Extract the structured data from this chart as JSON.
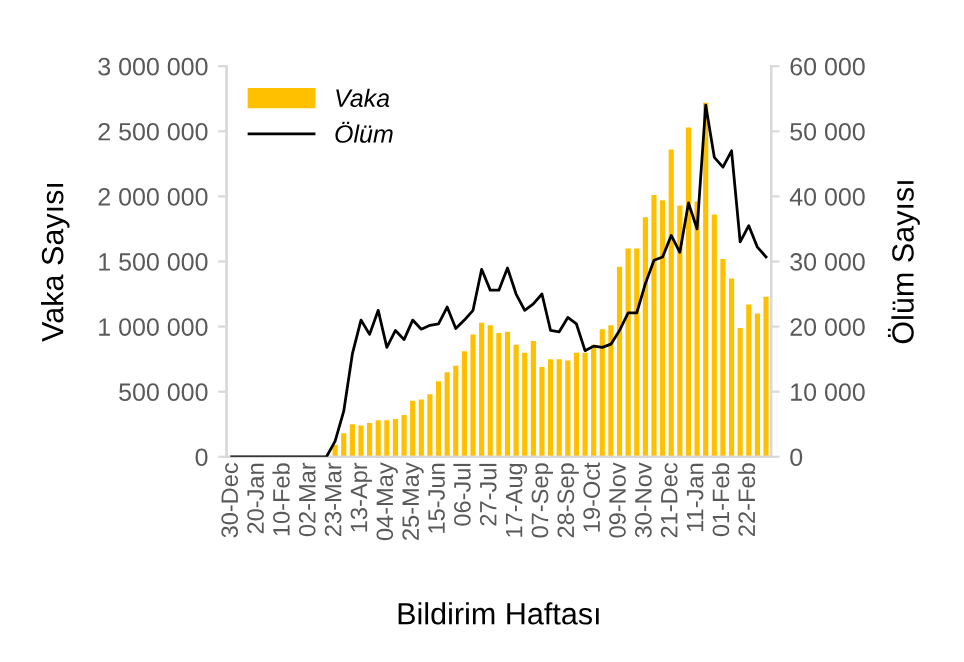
{
  "chart_data": {
    "type": "bar",
    "xlabel": "Bildirim Haftası",
    "ylabel": "Vaka Sayısı",
    "y2label": "Ölüm Sayısı",
    "categories": [
      "30-Dec",
      null,
      null,
      "20-Jan",
      null,
      null,
      "10-Feb",
      null,
      null,
      "02-Mar",
      null,
      null,
      "23-Mar",
      null,
      null,
      "13-Apr",
      null,
      null,
      "04-May",
      null,
      null,
      "25-May",
      null,
      null,
      "15-Jun",
      null,
      null,
      "06-Jul",
      null,
      null,
      "27-Jul",
      null,
      null,
      "17-Aug",
      null,
      null,
      "07-Sep",
      null,
      null,
      "28-Sep",
      null,
      null,
      "19-Oct",
      null,
      null,
      "09-Nov",
      null,
      null,
      "30-Nov",
      null,
      null,
      "21-Dec",
      null,
      null,
      "11-Jan",
      null,
      null,
      "01-Feb",
      null,
      null,
      "22-Feb",
      null,
      null
    ],
    "series": [
      {
        "name": "Vaka",
        "color": "#ffc000",
        "values": [
          0,
          0,
          0,
          0,
          0,
          0,
          0,
          0,
          0,
          0,
          0,
          0,
          90000,
          180000,
          250000,
          240000,
          260000,
          280000,
          280000,
          290000,
          320000,
          430000,
          440000,
          480000,
          580000,
          650000,
          700000,
          810000,
          940000,
          1030000,
          1010000,
          950000,
          960000,
          860000,
          800000,
          890000,
          690000,
          750000,
          750000,
          740000,
          800000,
          800000,
          860000,
          980000,
          1010000,
          1460000,
          1600000,
          1600000,
          1840000,
          2010000,
          1970000,
          2360000,
          1930000,
          2530000,
          1960000,
          2720000,
          1860000,
          1520000,
          1370000,
          990000,
          1170000,
          1100000,
          1230000
        ]
      },
      {
        "name": "Ölüm",
        "type": "line",
        "axis": "y2",
        "color": "#000000",
        "values": [
          0,
          0,
          0,
          0,
          0,
          0,
          0,
          0,
          0,
          0,
          0,
          0,
          2400,
          7000,
          15800,
          21000,
          18800,
          22500,
          16800,
          19400,
          18000,
          21000,
          19600,
          20200,
          20400,
          23000,
          19700,
          21000,
          22500,
          28800,
          25600,
          25600,
          29000,
          25000,
          22500,
          23500,
          25000,
          19400,
          19200,
          21400,
          20400,
          16300,
          17000,
          16800,
          17300,
          19400,
          22100,
          22100,
          26600,
          30200,
          30700,
          34000,
          31400,
          39000,
          35000,
          54000,
          46000,
          44500,
          47000,
          33000,
          35500,
          32200,
          30700
        ]
      }
    ],
    "ylim": [
      0,
      3000000
    ],
    "yticks": [
      {
        "value": 0,
        "label": "0"
      },
      {
        "value": 500000,
        "label": "500 000"
      },
      {
        "value": 1000000,
        "label": "1 000 000"
      },
      {
        "value": 1500000,
        "label": "1 500 000"
      },
      {
        "value": 2000000,
        "label": "2 000 000"
      },
      {
        "value": 2500000,
        "label": "2 500 000"
      },
      {
        "value": 3000000,
        "label": "3 000 000"
      }
    ],
    "y2lim": [
      0,
      60000
    ],
    "y2ticks": [
      {
        "value": 0,
        "label": "0"
      },
      {
        "value": 10000,
        "label": "10 000"
      },
      {
        "value": 20000,
        "label": "20 000"
      },
      {
        "value": 30000,
        "label": "30 000"
      },
      {
        "value": 40000,
        "label": "40 000"
      },
      {
        "value": 50000,
        "label": "50 000"
      },
      {
        "value": 60000,
        "label": "60 000"
      }
    ],
    "legend": "top left",
    "grid": false
  }
}
